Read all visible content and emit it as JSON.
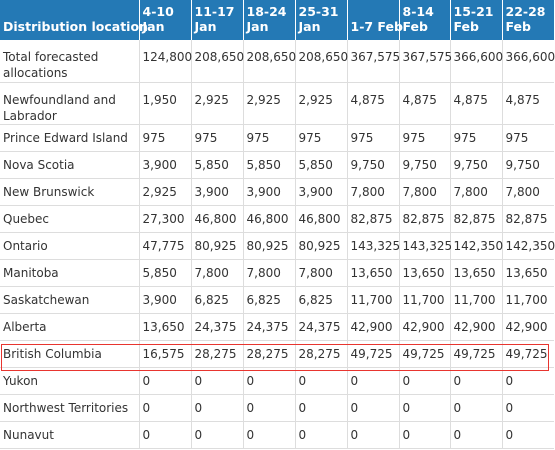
{
  "table": {
    "headers": [
      [
        "Distribution location",
        ""
      ],
      [
        "4-10",
        "Jan"
      ],
      [
        "11-17",
        "Jan"
      ],
      [
        "18-24",
        "Jan"
      ],
      [
        "25-31",
        "Jan"
      ],
      [
        "",
        "1-7 Feb"
      ],
      [
        "8-14",
        "Feb"
      ],
      [
        "15-21",
        "Feb"
      ],
      [
        "22-28",
        "Feb"
      ]
    ],
    "rows": [
      {
        "location": "Total forecasted allocations",
        "values": [
          "124,800",
          "208,650",
          "208,650",
          "208,650",
          "367,575",
          "367,575",
          "366,600",
          "366,600"
        ]
      },
      {
        "location": "Newfoundland and Labrador",
        "values": [
          "1,950",
          "2,925",
          "2,925",
          "2,925",
          "4,875",
          "4,875",
          "4,875",
          "4,875"
        ]
      },
      {
        "location": "Prince Edward Island",
        "values": [
          "975",
          "975",
          "975",
          "975",
          "975",
          "975",
          "975",
          "975"
        ]
      },
      {
        "location": "Nova Scotia",
        "values": [
          "3,900",
          "5,850",
          "5,850",
          "5,850",
          "9,750",
          "9,750",
          "9,750",
          "9,750"
        ]
      },
      {
        "location": "New Brunswick",
        "values": [
          "2,925",
          "3,900",
          "3,900",
          "3,900",
          "7,800",
          "7,800",
          "7,800",
          "7,800"
        ]
      },
      {
        "location": "Quebec",
        "values": [
          "27,300",
          "46,800",
          "46,800",
          "46,800",
          "82,875",
          "82,875",
          "82,875",
          "82,875"
        ]
      },
      {
        "location": "Ontario",
        "values": [
          "47,775",
          "80,925",
          "80,925",
          "80,925",
          "143,325",
          "143,325",
          "142,350",
          "142,350"
        ]
      },
      {
        "location": "Manitoba",
        "values": [
          "5,850",
          "7,800",
          "7,800",
          "7,800",
          "13,650",
          "13,650",
          "13,650",
          "13,650"
        ]
      },
      {
        "location": "Saskatchewan",
        "values": [
          "3,900",
          "6,825",
          "6,825",
          "6,825",
          "11,700",
          "11,700",
          "11,700",
          "11,700"
        ]
      },
      {
        "location": "Alberta",
        "values": [
          "13,650",
          "24,375",
          "24,375",
          "24,375",
          "42,900",
          "42,900",
          "42,900",
          "42,900"
        ]
      },
      {
        "location": "British Columbia",
        "values": [
          "16,575",
          "28,275",
          "28,275",
          "28,275",
          "49,725",
          "49,725",
          "49,725",
          "49,725"
        ]
      },
      {
        "location": "Yukon",
        "values": [
          "0",
          "0",
          "0",
          "0",
          "0",
          "0",
          "0",
          "0"
        ]
      },
      {
        "location": "Northwest Territories",
        "values": [
          "0",
          "0",
          "0",
          "0",
          "0",
          "0",
          "0",
          "0"
        ]
      },
      {
        "location": "Nunavut",
        "values": [
          "0",
          "0",
          "0",
          "0",
          "0",
          "0",
          "0",
          "0"
        ]
      }
    ]
  },
  "highlight": {
    "row_location": "British Columbia",
    "color": "#e8352f"
  },
  "colors": {
    "header_bg": "#2479b5",
    "header_text": "#ffffff",
    "grid": "#dddddd",
    "body_text": "#333333"
  }
}
